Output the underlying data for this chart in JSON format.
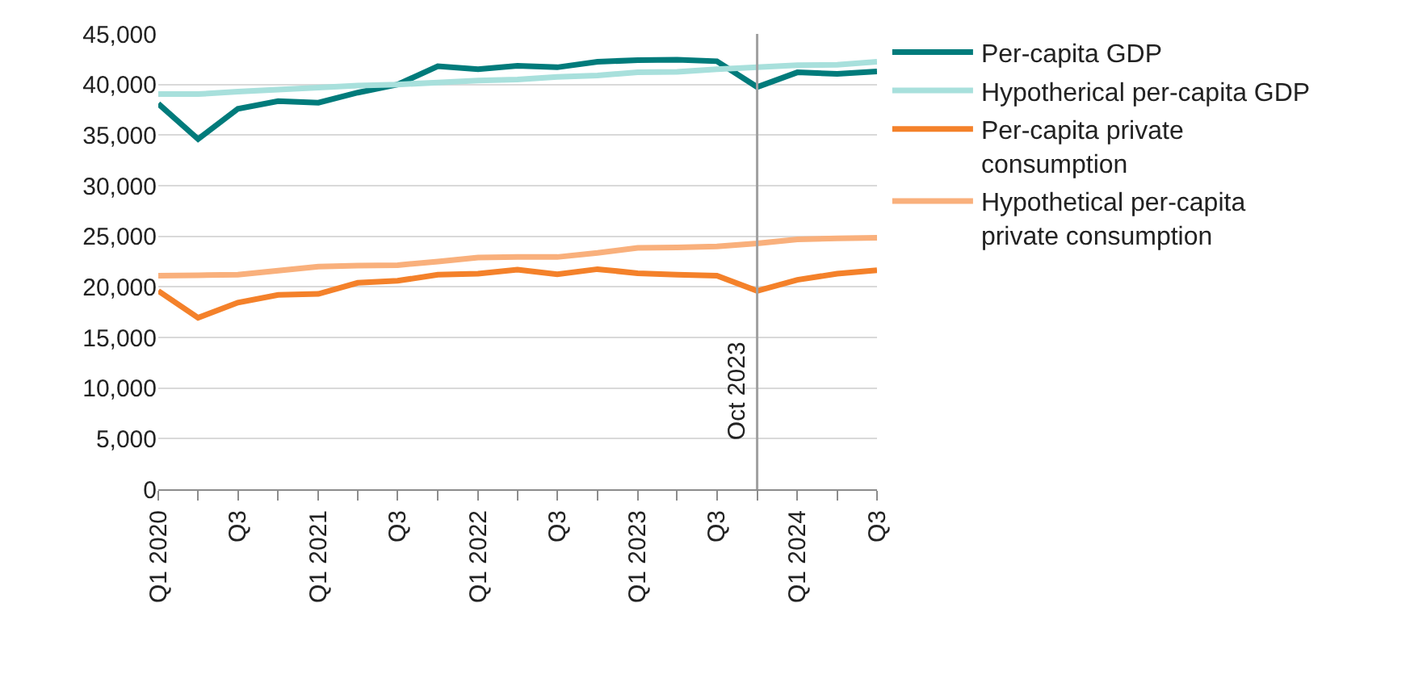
{
  "chart_data": {
    "type": "line",
    "x": [
      "2020-01",
      "2020-04",
      "2020-07",
      "2020-10",
      "2021-01",
      "2021-04",
      "2021-07",
      "2021-10",
      "2022-01",
      "2022-04",
      "2022-07",
      "2022-10",
      "2023-01",
      "2023-04",
      "2023-07",
      "2023-10",
      "2024-01",
      "2024-04",
      "2024-07"
    ],
    "xlim": [
      "2020-01",
      "2024-07"
    ],
    "xticks": [
      {
        "value": "2020-01",
        "label": "Q1 2020"
      },
      {
        "value": "2020-04",
        "label": null
      },
      {
        "value": "2020-07",
        "label": "Q3"
      },
      {
        "value": "2020-10",
        "label": null
      },
      {
        "value": "2021-01",
        "label": "Q1 2021"
      },
      {
        "value": "2021-04",
        "label": null
      },
      {
        "value": "2021-07",
        "label": "Q3"
      },
      {
        "value": "2021-10",
        "label": null
      },
      {
        "value": "2022-01",
        "label": "Q1 2022"
      },
      {
        "value": "2022-04",
        "label": null
      },
      {
        "value": "2022-07",
        "label": "Q3"
      },
      {
        "value": "2022-10",
        "label": null
      },
      {
        "value": "2023-01",
        "label": "Q1 2023"
      },
      {
        "value": "2023-04",
        "label": null
      },
      {
        "value": "2023-07",
        "label": "Q3"
      },
      {
        "value": "2023-10",
        "label": null
      },
      {
        "value": "2024-01",
        "label": "Q1 2024"
      },
      {
        "value": "2024-04",
        "label": null
      },
      {
        "value": "2024-07",
        "label": "Q3"
      }
    ],
    "ylim": [
      0,
      45000
    ],
    "yticks": [
      {
        "value": 0,
        "label": "0"
      },
      {
        "value": 5000,
        "label": "5,000"
      },
      {
        "value": 10000,
        "label": "10,000"
      },
      {
        "value": 15000,
        "label": "15,000"
      },
      {
        "value": 20000,
        "label": "20,000"
      },
      {
        "value": 25000,
        "label": "25,000"
      },
      {
        "value": 30000,
        "label": "30,000"
      },
      {
        "value": 35000,
        "label": "35,000"
      },
      {
        "value": 40000,
        "label": "40,000"
      },
      {
        "value": 45000,
        "label": "45,000"
      }
    ],
    "grid": "y",
    "legend": "right",
    "series": [
      {
        "name": "Per-capita GDP",
        "color": "#007b7b",
        "values": [
          38100,
          34600,
          37600,
          38350,
          38200,
          39200,
          40000,
          41800,
          41500,
          41850,
          41700,
          42250,
          42400,
          42450,
          42300,
          39750,
          41200,
          41050,
          41300
        ]
      },
      {
        "name": "Hypotherical per-capita GDP",
        "color": "#a8e0dc",
        "values": [
          39050,
          39050,
          39300,
          39500,
          39700,
          39900,
          40000,
          40200,
          40400,
          40500,
          40750,
          40900,
          41200,
          41250,
          41500,
          41700,
          41900,
          41950,
          42250
        ]
      },
      {
        "name": "Per-capita private consumption",
        "color": "#f4812a",
        "values": [
          19600,
          16950,
          18450,
          19200,
          19300,
          20400,
          20600,
          21200,
          21300,
          21700,
          21250,
          21750,
          21350,
          21200,
          21100,
          19600,
          20700,
          21300,
          21650
        ]
      },
      {
        "name": "Hypothetical per-capita private consumption",
        "color": "#f9b07c",
        "values": [
          21100,
          21150,
          21200,
          21600,
          22000,
          22100,
          22150,
          22500,
          22900,
          22950,
          22950,
          23350,
          23850,
          23900,
          24000,
          24300,
          24700,
          24800,
          24850
        ]
      }
    ],
    "ref_lines": [
      {
        "axis": "x",
        "value": "2023-10",
        "label": "Oct 2023",
        "color": "#a0a0a0"
      }
    ]
  }
}
